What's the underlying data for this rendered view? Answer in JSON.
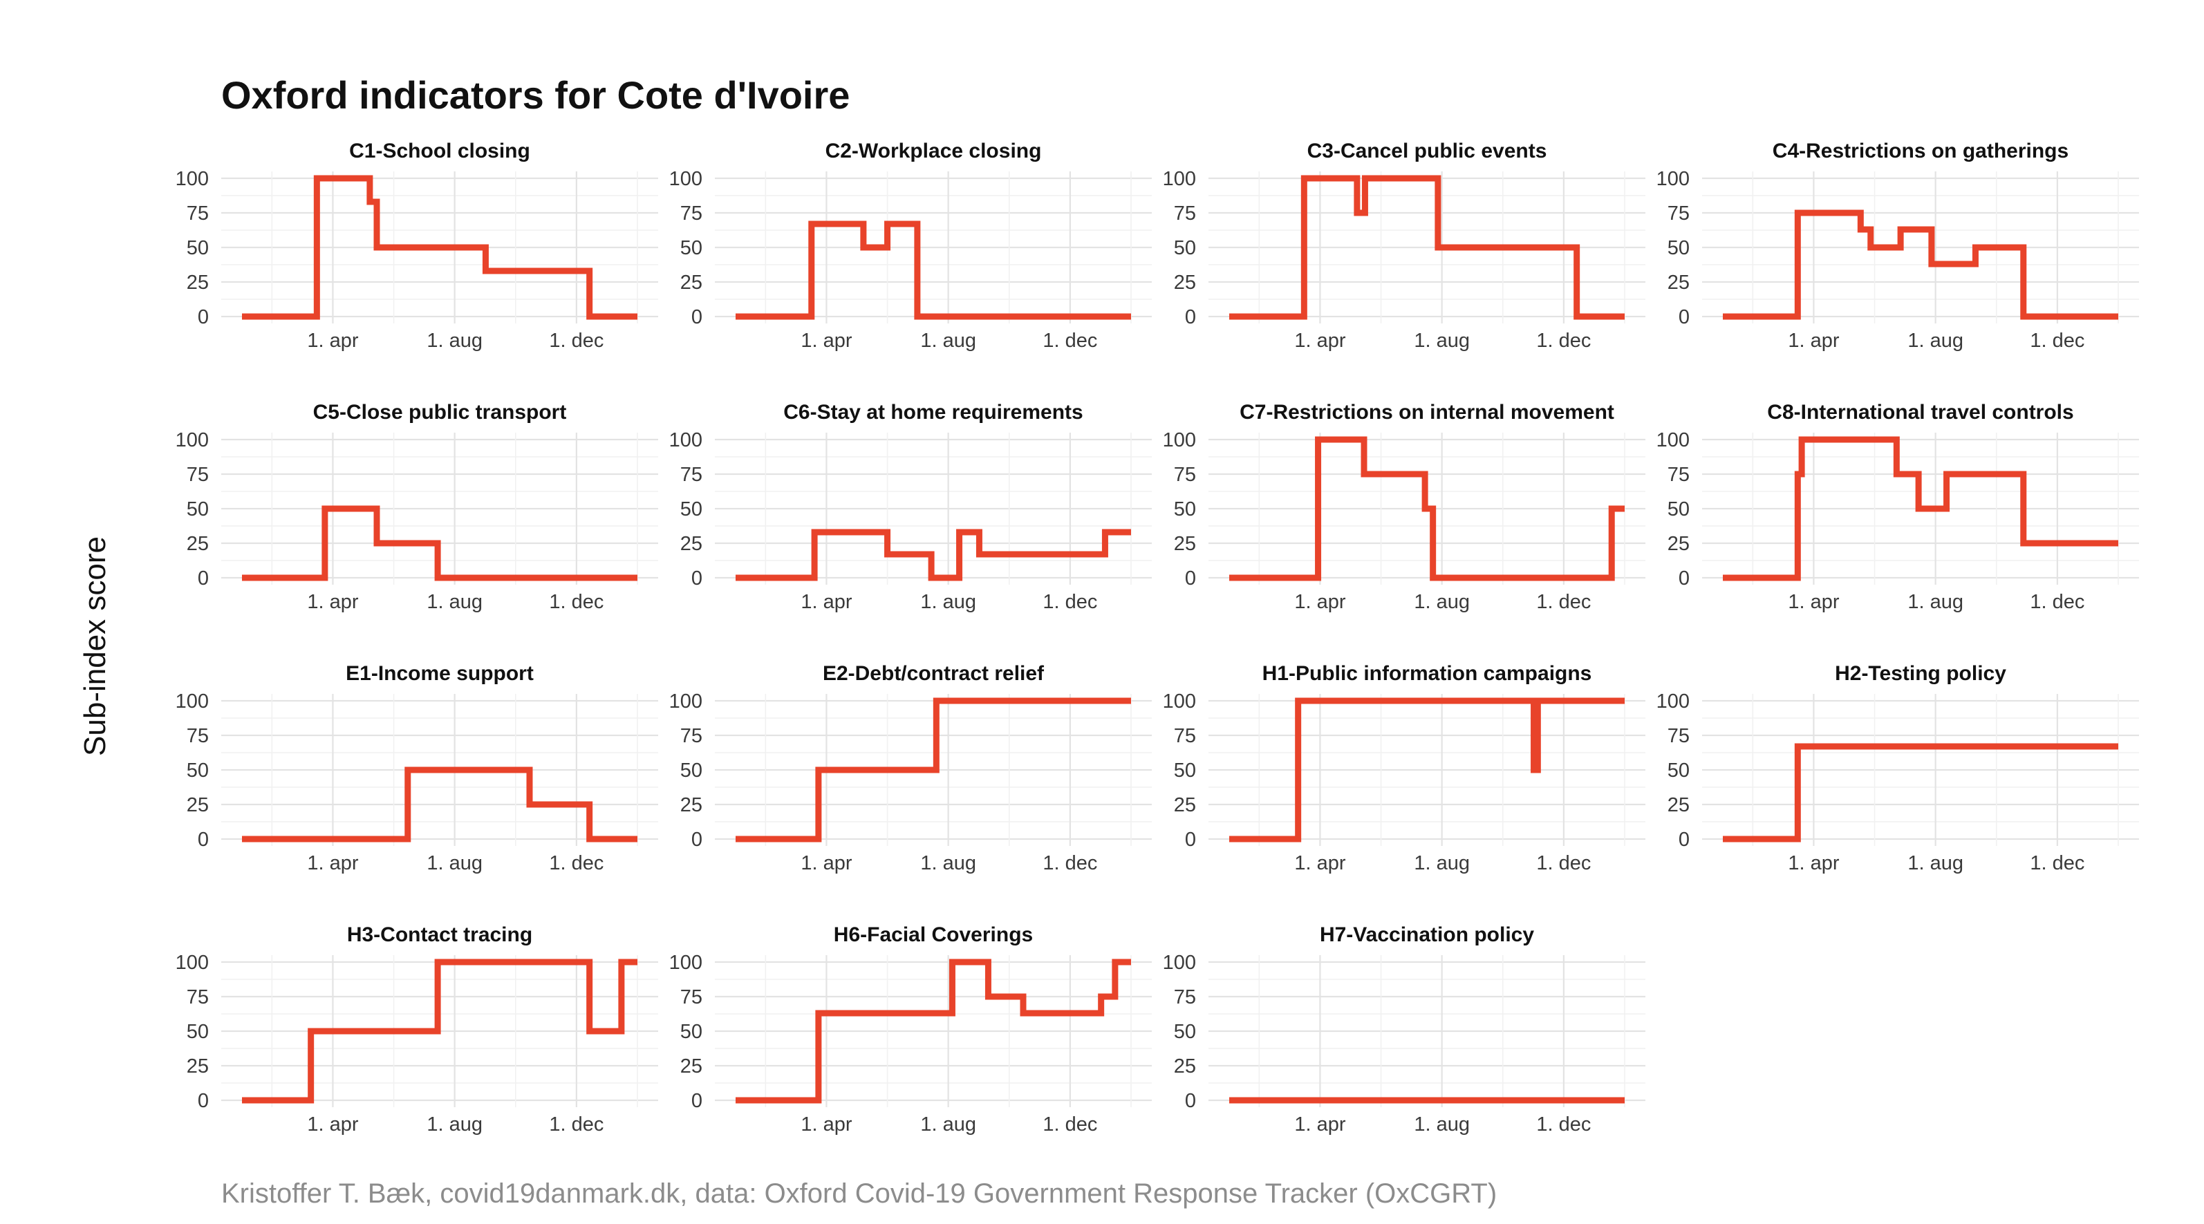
{
  "title": "Oxford indicators for Cote d'Ivoire",
  "ylabel": "Sub-index score",
  "caption": "Kristoffer T. Bæk, covid19danmark.dk, data: Oxford Covid-19 Government Response Tracker (OxCGRT)",
  "colors": {
    "line": "#e8432a",
    "text": "#111111",
    "grid": "#e3e3e3",
    "caption": "#8c8c8c"
  },
  "chart_data": {
    "type": "line",
    "step": true,
    "ylim": [
      0,
      100
    ],
    "yticks": [
      "100",
      "75",
      "50",
      "25",
      "0"
    ],
    "xticks": [
      {
        "label": "1. apr",
        "value": "2020-04-01"
      },
      {
        "label": "1. aug",
        "value": "2020-08-01"
      },
      {
        "label": "1. dec",
        "value": "2020-12-01"
      }
    ],
    "xrange": [
      "2020-01-01",
      "2021-01-31"
    ],
    "grid": true,
    "panels": [
      {
        "title": "C1-School closing",
        "x": [
          "2020-01-01",
          "2020-03-16",
          "2020-05-08",
          "2020-05-15",
          "2020-09-01",
          "2020-12-14",
          "2021-01-31"
        ],
        "y": [
          0,
          100,
          83,
          50,
          33,
          0,
          0
        ]
      },
      {
        "title": "C2-Workplace closing",
        "x": [
          "2020-01-01",
          "2020-03-17",
          "2020-05-08",
          "2020-06-01",
          "2020-07-01",
          "2020-07-25",
          "2021-01-31"
        ],
        "y": [
          0,
          67,
          50,
          67,
          0,
          0,
          0
        ]
      },
      {
        "title": "C3-Cancel public events",
        "x": [
          "2020-01-01",
          "2020-03-16",
          "2020-05-08",
          "2020-05-16",
          "2020-07-28",
          "2020-12-14",
          "2021-01-31"
        ],
        "y": [
          0,
          100,
          75,
          100,
          50,
          0,
          0
        ]
      },
      {
        "title": "C4-Restrictions on gatherings",
        "x": [
          "2020-01-01",
          "2020-03-16",
          "2020-05-18",
          "2020-05-28",
          "2020-06-27",
          "2020-07-28",
          "2020-09-10",
          "2020-10-28",
          "2021-01-31"
        ],
        "y": [
          0,
          75,
          63,
          50,
          63,
          38,
          50,
          0,
          0
        ]
      },
      {
        "title": "C5-Close public transport",
        "x": [
          "2020-01-01",
          "2020-03-24",
          "2020-05-15",
          "2020-07-15",
          "2021-01-31"
        ],
        "y": [
          0,
          50,
          25,
          0,
          0
        ]
      },
      {
        "title": "C6-Stay at home requirements",
        "x": [
          "2020-01-01",
          "2020-03-20",
          "2020-06-01",
          "2020-07-15",
          "2020-08-12",
          "2020-09-01",
          "2021-01-05",
          "2021-01-31"
        ],
        "y": [
          0,
          33,
          17,
          0,
          33,
          17,
          33,
          33
        ]
      },
      {
        "title": "C7-Restrictions on internal movement",
        "x": [
          "2020-01-01",
          "2020-03-30",
          "2020-05-15",
          "2020-07-15",
          "2020-07-23",
          "2021-01-18",
          "2021-01-31"
        ],
        "y": [
          0,
          100,
          75,
          50,
          0,
          50,
          50
        ]
      },
      {
        "title": "C8-International travel controls",
        "x": [
          "2020-01-01",
          "2020-03-16",
          "2020-03-20",
          "2020-06-23",
          "2020-07-15",
          "2020-08-12",
          "2020-10-28",
          "2021-01-31"
        ],
        "y": [
          0,
          75,
          100,
          75,
          50,
          75,
          25,
          25
        ]
      },
      {
        "title": "E1-Income support",
        "x": [
          "2020-01-01",
          "2020-06-15",
          "2020-10-15",
          "2020-12-14",
          "2021-01-31"
        ],
        "y": [
          0,
          50,
          25,
          0,
          0
        ]
      },
      {
        "title": "E2-Debt/contract relief",
        "x": [
          "2020-01-01",
          "2020-03-24",
          "2020-07-20",
          "2021-01-31"
        ],
        "y": [
          0,
          50,
          100,
          100
        ]
      },
      {
        "title": "H1-Public information campaigns",
        "x": [
          "2020-01-01",
          "2020-03-10",
          "2020-11-01",
          "2020-11-05",
          "2021-01-31"
        ],
        "y": [
          0,
          100,
          50,
          100,
          100
        ]
      },
      {
        "title": "H2-Testing policy",
        "x": [
          "2020-01-01",
          "2020-03-16",
          "2021-01-31"
        ],
        "y": [
          0,
          67,
          67
        ]
      },
      {
        "title": "H3-Contact tracing",
        "x": [
          "2020-01-01",
          "2020-03-10",
          "2020-07-15",
          "2020-12-14",
          "2021-01-15",
          "2021-01-31"
        ],
        "y": [
          0,
          50,
          100,
          50,
          100,
          100
        ]
      },
      {
        "title": "H6-Facial Coverings",
        "x": [
          "2020-01-01",
          "2020-03-24",
          "2020-08-05",
          "2020-09-10",
          "2020-10-15",
          "2021-01-01",
          "2021-01-15",
          "2021-01-31"
        ],
        "y": [
          0,
          63,
          100,
          75,
          63,
          75,
          100,
          100
        ]
      },
      {
        "title": "H7-Vaccination policy",
        "x": [
          "2020-01-01",
          "2021-01-31"
        ],
        "y": [
          0,
          0
        ]
      }
    ]
  }
}
